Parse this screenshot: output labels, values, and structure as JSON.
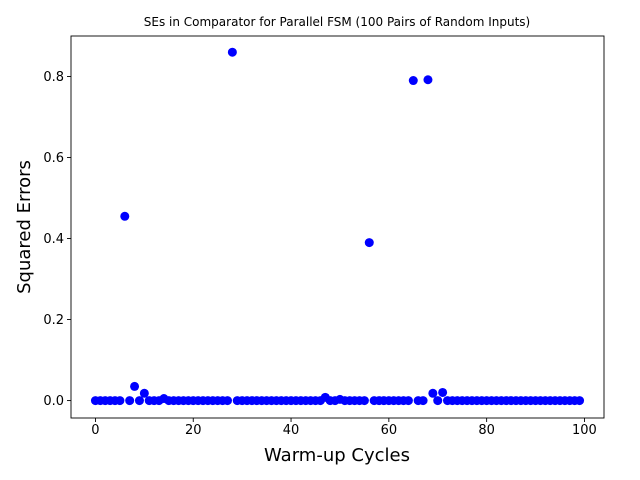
{
  "chart_data": {
    "type": "scatter",
    "title": "SEs in Comparator for Parallel FSM (100 Pairs of Random Inputs)",
    "xlabel": "Warm-up Cycles",
    "ylabel": "Squared Errors",
    "xlim": [
      -5,
      104
    ],
    "ylim": [
      -0.043,
      0.9
    ],
    "xticks": [
      0,
      20,
      40,
      60,
      80,
      100
    ],
    "xtick_labels": [
      "0",
      "20",
      "40",
      "60",
      "80",
      "100"
    ],
    "yticks": [
      0.0,
      0.2,
      0.4,
      0.6,
      0.8
    ],
    "ytick_labels": [
      "0.0",
      "0.2",
      "0.4",
      "0.6",
      "0.8"
    ],
    "grid": false,
    "marker_color": "#0000ff",
    "series": [
      {
        "x": [
          0,
          1,
          2,
          3,
          4,
          5,
          6,
          7,
          8,
          9,
          10,
          11,
          12,
          13,
          14,
          15,
          16,
          17,
          18,
          19,
          20,
          21,
          22,
          23,
          24,
          25,
          26,
          27,
          28,
          29,
          30,
          31,
          32,
          33,
          34,
          35,
          36,
          37,
          38,
          39,
          40,
          41,
          42,
          43,
          44,
          45,
          46,
          47,
          48,
          49,
          50,
          51,
          52,
          53,
          54,
          55,
          56,
          57,
          58,
          59,
          60,
          61,
          62,
          63,
          64,
          65,
          66,
          67,
          68,
          69,
          70,
          71,
          72,
          73,
          74,
          75,
          76,
          77,
          78,
          79,
          80,
          81,
          82,
          83,
          84,
          85,
          86,
          87,
          88,
          89,
          90,
          91,
          92,
          93,
          94,
          95,
          96,
          97,
          98,
          99
        ],
        "y": [
          0,
          0,
          0,
          0,
          0,
          0,
          0.455,
          0,
          0.035,
          0,
          0.018,
          0,
          0,
          0,
          0.005,
          0,
          0,
          0,
          0,
          0,
          0,
          0,
          0,
          0,
          0,
          0,
          0,
          0,
          0.86,
          0,
          0,
          0,
          0,
          0,
          0,
          0,
          0,
          0,
          0,
          0,
          0,
          0,
          0,
          0,
          0,
          0,
          0,
          0.008,
          0,
          0,
          0.003,
          0,
          0,
          0,
          0,
          0,
          0.39,
          0,
          0,
          0,
          0,
          0,
          0,
          0,
          0,
          0.79,
          0,
          0,
          0.792,
          0.018,
          0,
          0.02,
          0,
          0,
          0,
          0,
          0,
          0,
          0,
          0,
          0,
          0,
          0,
          0,
          0,
          0,
          0,
          0,
          0,
          0,
          0,
          0,
          0,
          0,
          0,
          0,
          0,
          0,
          0,
          0
        ]
      }
    ]
  }
}
